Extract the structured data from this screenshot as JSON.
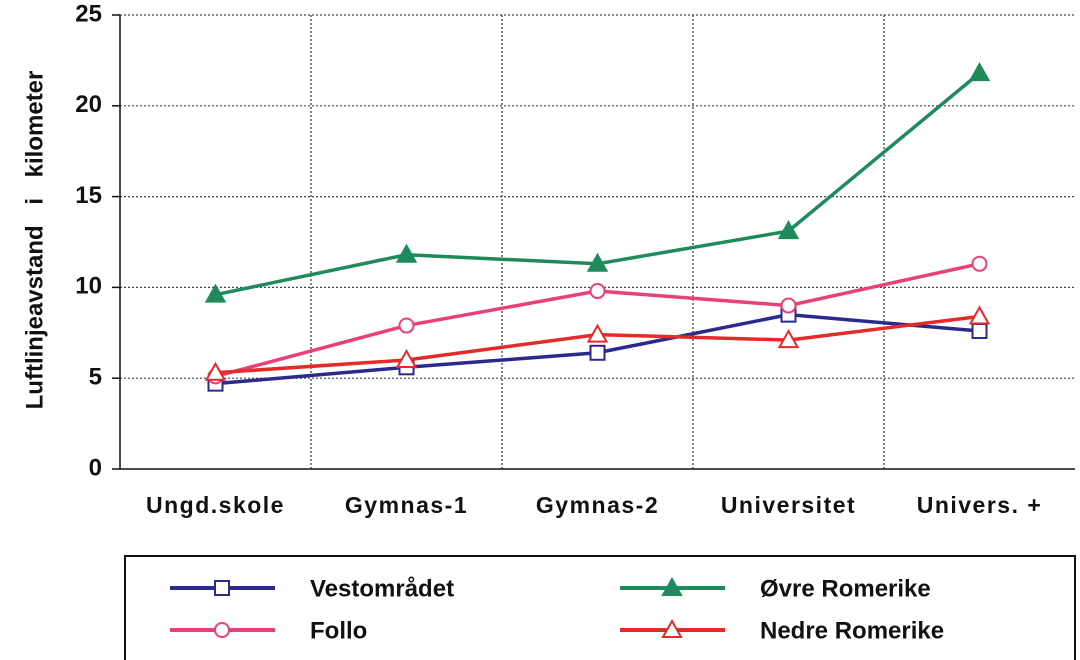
{
  "chart_data": {
    "type": "line",
    "y_label": "Luftlinjeavstand i kilometer",
    "categories": [
      "Ungd.skole",
      "Gymnas-1",
      "Gymnas-2",
      "Universitet",
      "Univers. +"
    ],
    "series": [
      {
        "name": "Vestområdet",
        "color": "#2a2a8c",
        "marker": "square",
        "filled": false,
        "values": [
          4.7,
          5.6,
          6.4,
          8.5,
          7.6
        ]
      },
      {
        "name": "Øvre Romerike",
        "color": "#1f8a5c",
        "marker": "triangle",
        "filled": true,
        "values": [
          9.6,
          11.8,
          11.3,
          13.1,
          21.8
        ]
      },
      {
        "name": "Follo",
        "color": "#e8407a",
        "marker": "circle",
        "filled": false,
        "values": [
          5.1,
          7.9,
          9.8,
          9.0,
          11.3
        ]
      },
      {
        "name": "Nedre Romerike",
        "color": "#e42a2a",
        "marker": "triangle",
        "filled": false,
        "values": [
          5.3,
          6.0,
          7.4,
          7.1,
          8.4
        ]
      }
    ],
    "ylim": [
      0,
      25
    ],
    "yticks": [
      0,
      5,
      10,
      15,
      20,
      25
    ],
    "grid": true
  }
}
